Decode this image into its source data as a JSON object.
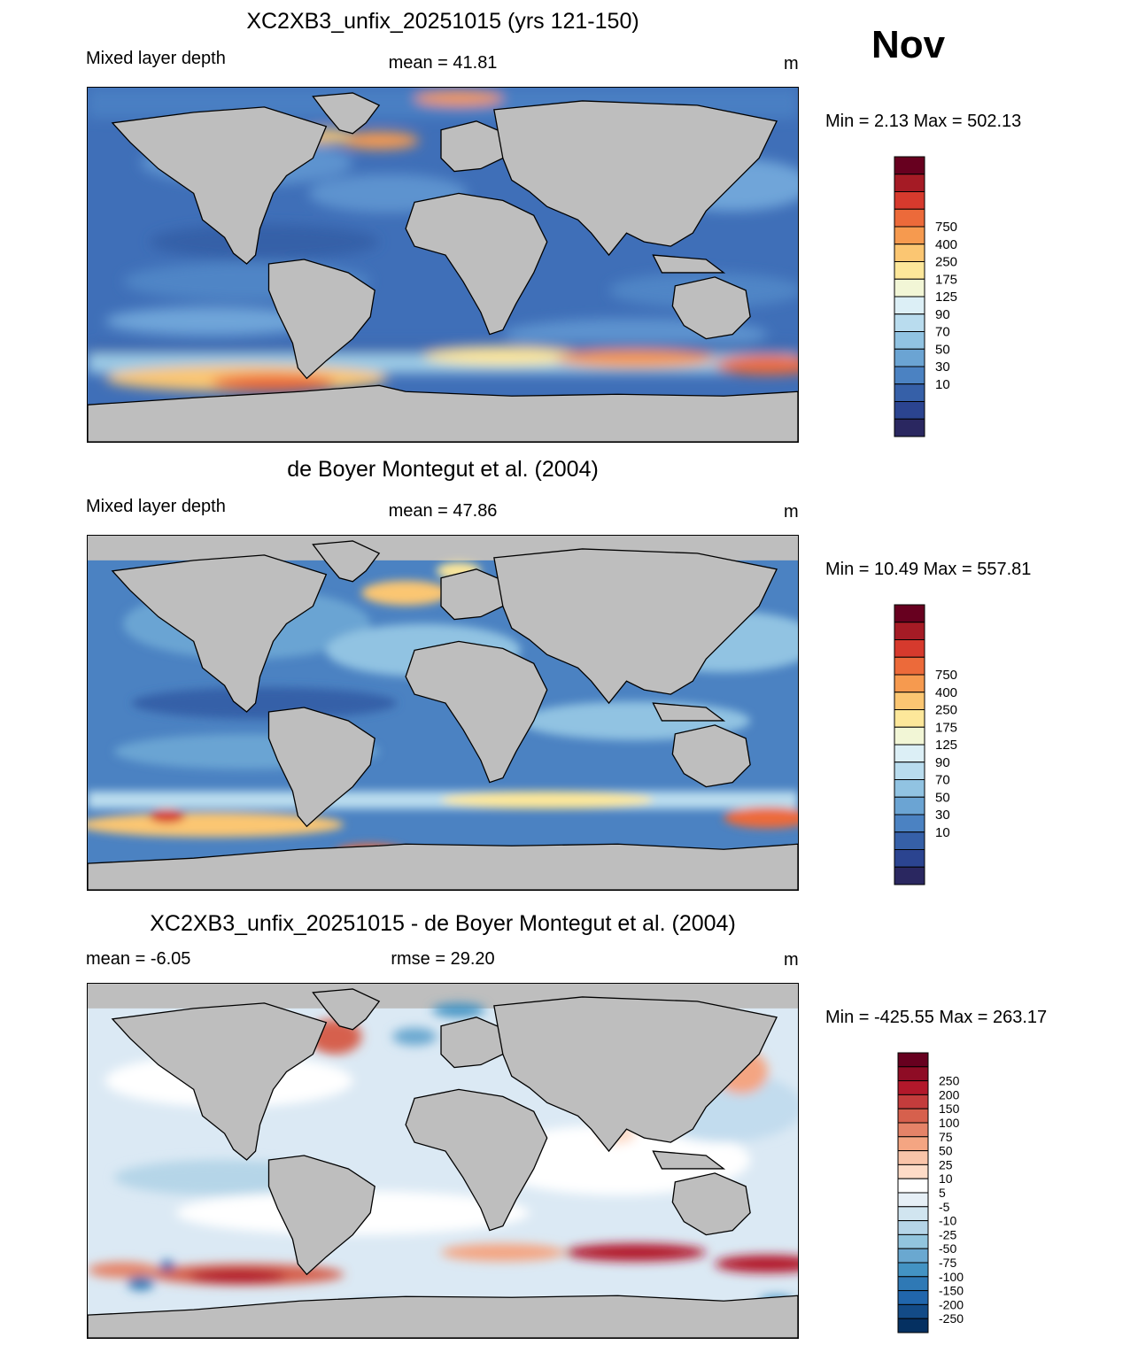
{
  "month": "Nov",
  "units_label": "m",
  "panels": [
    {
      "id": "model",
      "title": "XC2XB3_unfix_20251015 (yrs 121-150)",
      "left_label": "Mixed layer depth",
      "center_label": "mean =  41.81",
      "right_label": "m",
      "min_max": "Min =   2.13 Max = 502.13",
      "colorbar": {
        "labels": [
          "750",
          "400",
          "250",
          "175",
          "125",
          "90",
          "70",
          "50",
          "30",
          "10"
        ],
        "colors": [
          "#67001f",
          "#a51b25",
          "#d63a2d",
          "#ec6a3a",
          "#f69a4f",
          "#fbc672",
          "#fde79a",
          "#f2f6d6",
          "#dceff6",
          "#b9dcee",
          "#91c3e2",
          "#6ba4d3",
          "#4b82c2",
          "#3660a8",
          "#2b4490",
          "#2a2760"
        ]
      }
    },
    {
      "id": "obs",
      "title": "de Boyer Montegut et al. (2004)",
      "left_label": "Mixed layer depth",
      "center_label": "mean =  47.86",
      "right_label": "m",
      "min_max": "Min =  10.49 Max = 557.81",
      "colorbar": {
        "labels": [
          "750",
          "400",
          "250",
          "175",
          "125",
          "90",
          "70",
          "50",
          "30",
          "10"
        ],
        "colors": [
          "#67001f",
          "#a51b25",
          "#d63a2d",
          "#ec6a3a",
          "#f69a4f",
          "#fbc672",
          "#fde79a",
          "#f2f6d6",
          "#dceff6",
          "#b9dcee",
          "#91c3e2",
          "#6ba4d3",
          "#4b82c2",
          "#3660a8",
          "#2b4490",
          "#2a2760"
        ]
      }
    },
    {
      "id": "diff",
      "title": "XC2XB3_unfix_20251015 - de Boyer Montegut et al. (2004)",
      "left_label": "mean =  -6.05",
      "center_label": "rmse =  29.20",
      "right_label": "m",
      "min_max": "Min = -425.55 Max = 263.17",
      "colorbar": {
        "labels": [
          "250",
          "200",
          "150",
          "100",
          "75",
          "50",
          "25",
          "10",
          "5",
          "-5",
          "-10",
          "-25",
          "-50",
          "-75",
          "-100",
          "-150",
          "-200",
          "-250"
        ],
        "colors": [
          "#67001f",
          "#8e0c25",
          "#b2182b",
          "#c43c3c",
          "#d6604d",
          "#e58368",
          "#f4a582",
          "#f9c4a9",
          "#fddbc7",
          "#ffffff",
          "#e6eff6",
          "#d1e5f0",
          "#b5d5e8",
          "#92c5de",
          "#6aa8d0",
          "#4393c3",
          "#2f79b5",
          "#2166ac",
          "#134b87",
          "#053061"
        ]
      }
    }
  ]
}
